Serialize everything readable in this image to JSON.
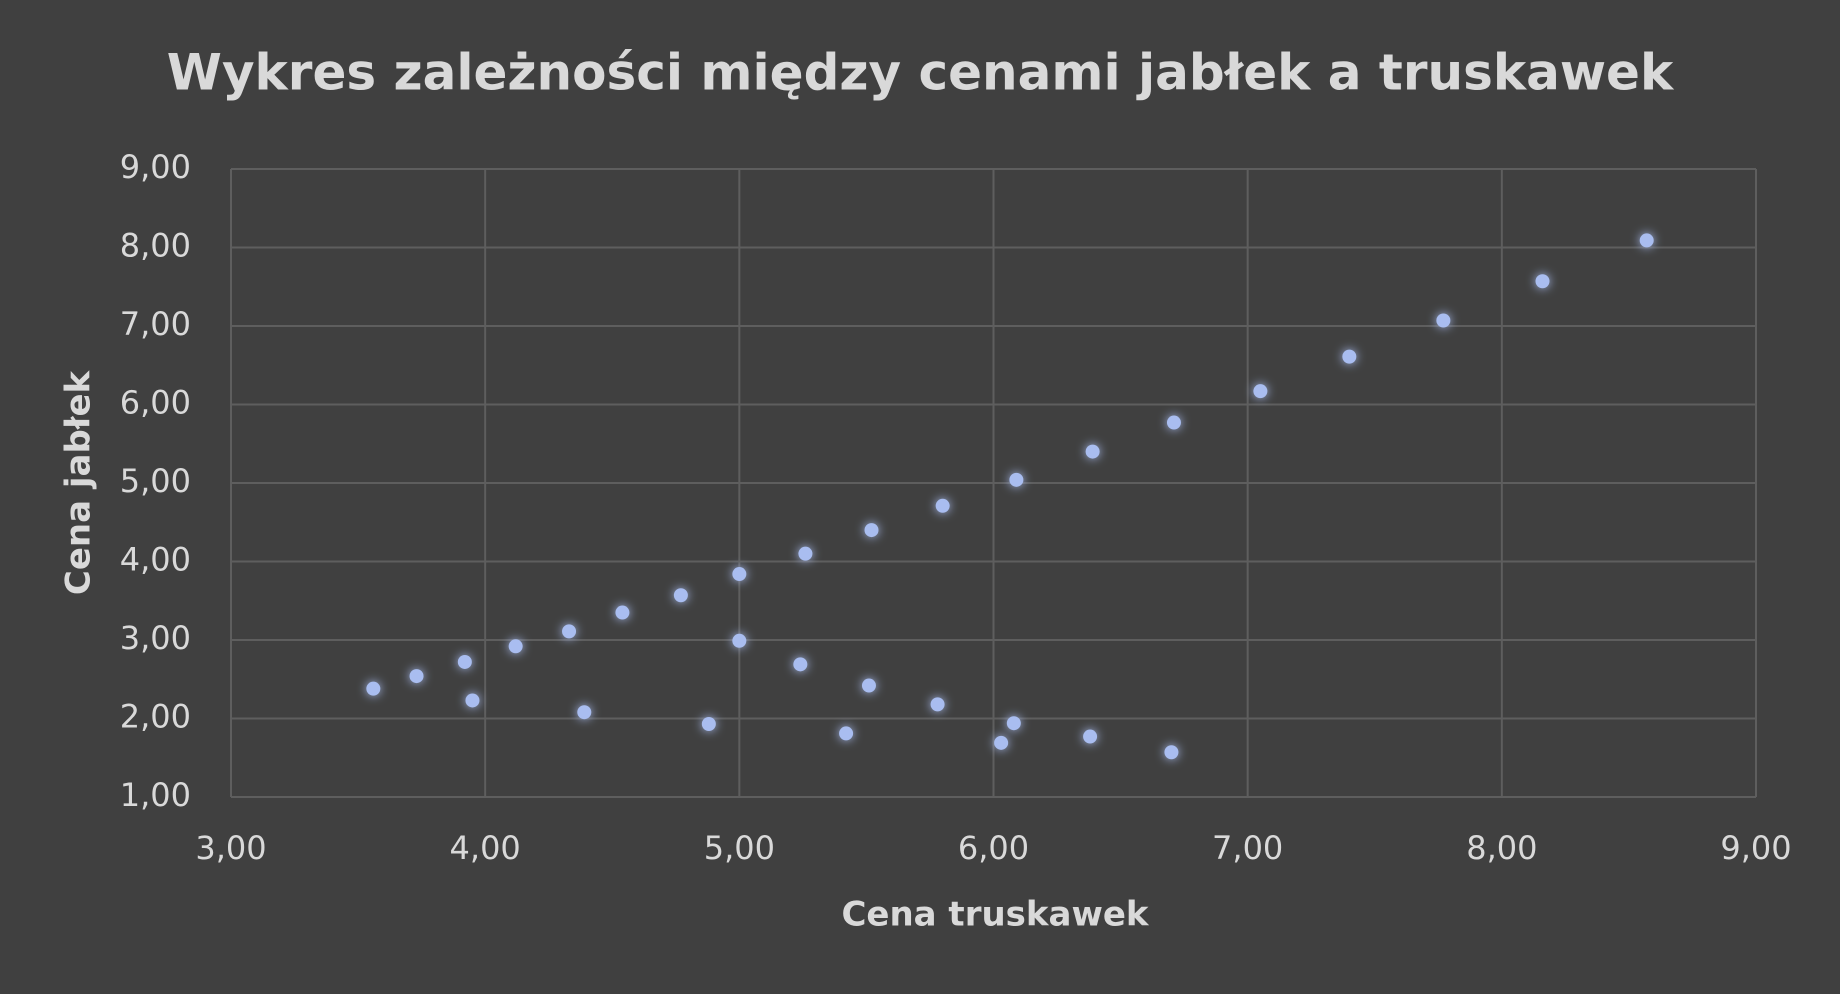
{
  "chart_data": {
    "type": "scatter",
    "title": "Wykres zależności między cenami jabłek a truskawek",
    "x_label": "Cena truskawek",
    "y_label": "Cena jabłek",
    "color": "#a9bdf0",
    "grid": true,
    "x": [
      3.56,
      3.73,
      3.92,
      3.95,
      4.12,
      4.33,
      4.39,
      4.54,
      4.77,
      4.88,
      5.0,
      5.0,
      5.24,
      5.26,
      5.42,
      5.51,
      5.52,
      5.78,
      5.8,
      6.03,
      6.08,
      6.09,
      6.38,
      6.39,
      6.7,
      6.71,
      7.05,
      7.4,
      7.77,
      8.16,
      8.57
    ],
    "values": [
      2.38,
      2.54,
      2.72,
      2.23,
      2.92,
      3.11,
      2.08,
      3.35,
      3.57,
      1.93,
      3.84,
      2.99,
      2.69,
      4.1,
      1.81,
      2.42,
      4.4,
      2.18,
      4.71,
      1.69,
      1.94,
      5.04,
      1.77,
      5.4,
      1.57,
      5.77,
      6.17,
      6.61,
      7.07,
      7.57,
      8.09
    ],
    "xlim": [
      3,
      9
    ],
    "ylim": [
      1,
      9
    ],
    "xticks": [
      {
        "value": 3,
        "label": "3,00"
      },
      {
        "value": 4,
        "label": "4,00"
      },
      {
        "value": 5,
        "label": "5,00"
      },
      {
        "value": 6,
        "label": "6,00"
      },
      {
        "value": 7,
        "label": "7,00"
      },
      {
        "value": 8,
        "label": "8,00"
      },
      {
        "value": 9,
        "label": "9,00"
      }
    ],
    "yticks": [
      {
        "value": 1,
        "label": "1,00"
      },
      {
        "value": 2,
        "label": "2,00"
      },
      {
        "value": 3,
        "label": "3,00"
      },
      {
        "value": 4,
        "label": "4,00"
      },
      {
        "value": 5,
        "label": "5,00"
      },
      {
        "value": 6,
        "label": "6,00"
      },
      {
        "value": 7,
        "label": "7,00"
      },
      {
        "value": 8,
        "label": "8,00"
      },
      {
        "value": 9,
        "label": "9,00"
      }
    ]
  }
}
